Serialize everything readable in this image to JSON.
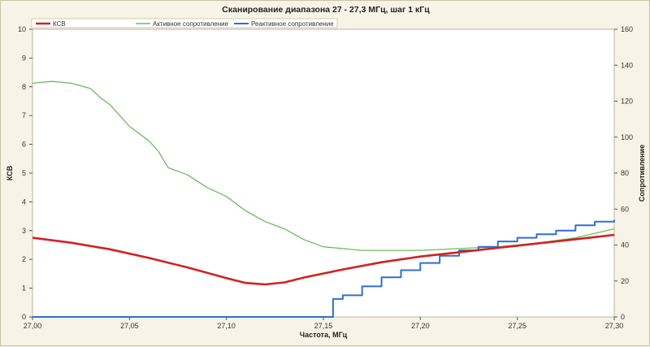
{
  "chart_data": {
    "type": "line",
    "title": "Сканирование диапазона 27 - 27,3 МГц, шаг 1 кГц",
    "xlabel": "Частота, МГц",
    "ylabel": "КСВ",
    "y2label": "Сопротивление",
    "xlim": [
      27.0,
      27.3
    ],
    "ylim": [
      0,
      10
    ],
    "y2lim": [
      0,
      160
    ],
    "x_ticks": [
      "27,00",
      "27,05",
      "27,10",
      "27,15",
      "27,20",
      "27,25",
      "27,30"
    ],
    "y_ticks": [
      "0",
      "1",
      "2",
      "3",
      "4",
      "5",
      "6",
      "7",
      "8",
      "9",
      "10"
    ],
    "y2_ticks": [
      "0",
      "20",
      "40",
      "60",
      "80",
      "100",
      "120",
      "140",
      "160"
    ],
    "grid": false,
    "legend_position": "top",
    "series": [
      {
        "name": "КСВ",
        "axis": "left",
        "color": "#d42020",
        "points": [
          [
            27.0,
            2.75
          ],
          [
            27.02,
            2.58
          ],
          [
            27.04,
            2.35
          ],
          [
            27.06,
            2.05
          ],
          [
            27.08,
            1.72
          ],
          [
            27.1,
            1.35
          ],
          [
            27.11,
            1.18
          ],
          [
            27.12,
            1.13
          ],
          [
            27.13,
            1.2
          ],
          [
            27.14,
            1.37
          ],
          [
            27.16,
            1.65
          ],
          [
            27.18,
            1.9
          ],
          [
            27.2,
            2.1
          ],
          [
            27.22,
            2.25
          ],
          [
            27.24,
            2.4
          ],
          [
            27.26,
            2.55
          ],
          [
            27.28,
            2.7
          ],
          [
            27.3,
            2.85
          ]
        ]
      },
      {
        "name": "Активное сопротивление",
        "axis": "right",
        "color": "#6cbc5c",
        "points": [
          [
            27.0,
            130
          ],
          [
            27.01,
            131
          ],
          [
            27.02,
            130
          ],
          [
            27.03,
            127
          ],
          [
            27.035,
            122
          ],
          [
            27.04,
            118
          ],
          [
            27.045,
            112
          ],
          [
            27.05,
            106
          ],
          [
            27.06,
            98
          ],
          [
            27.065,
            92
          ],
          [
            27.07,
            83
          ],
          [
            27.08,
            79
          ],
          [
            27.09,
            72
          ],
          [
            27.1,
            67
          ],
          [
            27.11,
            59
          ],
          [
            27.12,
            53
          ],
          [
            27.13,
            49
          ],
          [
            27.14,
            43
          ],
          [
            27.15,
            39
          ],
          [
            27.16,
            38
          ],
          [
            27.17,
            37
          ],
          [
            27.18,
            37
          ],
          [
            27.2,
            37
          ],
          [
            27.22,
            38
          ],
          [
            27.24,
            39
          ],
          [
            27.26,
            41
          ],
          [
            27.28,
            44
          ],
          [
            27.3,
            49
          ]
        ]
      },
      {
        "name": "Реактивное сопротивление",
        "axis": "right",
        "color": "#2e6fd0",
        "points": [
          [
            27.0,
            0
          ],
          [
            27.154,
            0
          ],
          [
            27.155,
            10
          ],
          [
            27.16,
            12
          ],
          [
            27.17,
            17
          ],
          [
            27.18,
            22
          ],
          [
            27.19,
            26
          ],
          [
            27.2,
            30
          ],
          [
            27.21,
            34
          ],
          [
            27.22,
            37
          ],
          [
            27.23,
            39
          ],
          [
            27.24,
            42
          ],
          [
            27.25,
            44
          ],
          [
            27.26,
            46
          ],
          [
            27.27,
            48
          ],
          [
            27.28,
            51
          ],
          [
            27.29,
            53
          ],
          [
            27.3,
            54
          ]
        ]
      }
    ]
  }
}
